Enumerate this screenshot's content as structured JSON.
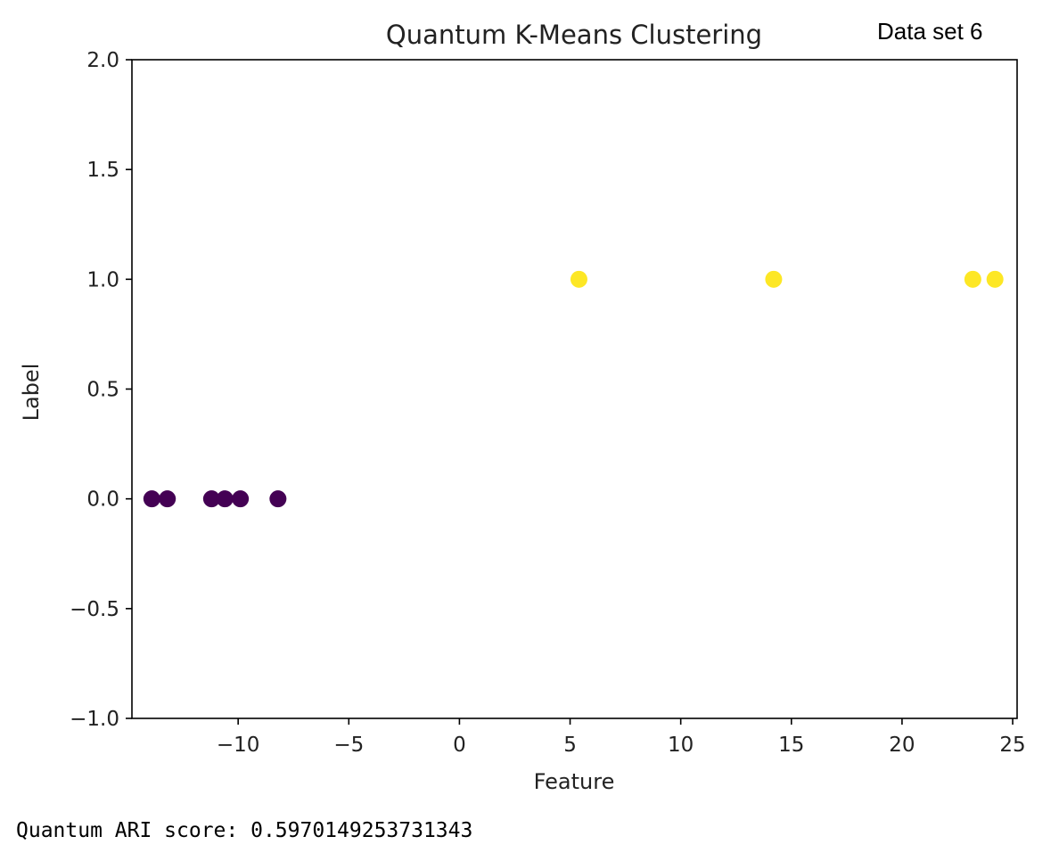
{
  "badge": "Data set 6",
  "output_line": "Quantum ARI score: 0.5970149253731343",
  "chart_data": {
    "type": "scatter",
    "title": "Quantum K-Means Clustering",
    "xlabel": "Feature",
    "ylabel": "Label",
    "xlim": [
      -14.8,
      25.2
    ],
    "ylim": [
      -1.0,
      2.0
    ],
    "xticks": [
      {
        "value": -10,
        "label": "−10"
      },
      {
        "value": -5,
        "label": "−5"
      },
      {
        "value": 0,
        "label": "0"
      },
      {
        "value": 5,
        "label": "5"
      },
      {
        "value": 10,
        "label": "10"
      },
      {
        "value": 15,
        "label": "15"
      },
      {
        "value": 20,
        "label": "20"
      },
      {
        "value": 25,
        "label": "25"
      }
    ],
    "yticks": [
      {
        "value": -1.0,
        "label": "−1.0"
      },
      {
        "value": -0.5,
        "label": "−0.5"
      },
      {
        "value": 0.0,
        "label": "0.0"
      },
      {
        "value": 0.5,
        "label": "0.5"
      },
      {
        "value": 1.0,
        "label": "1.0"
      },
      {
        "value": 1.5,
        "label": "1.5"
      },
      {
        "value": 2.0,
        "label": "2.0"
      }
    ],
    "grid": false,
    "series": [
      {
        "color": "#440154",
        "points": [
          {
            "x": -13.9,
            "y": 0
          },
          {
            "x": -13.2,
            "y": 0
          },
          {
            "x": -11.2,
            "y": 0
          },
          {
            "x": -10.6,
            "y": 0
          },
          {
            "x": -9.9,
            "y": 0
          },
          {
            "x": -8.2,
            "y": 0
          }
        ]
      },
      {
        "color": "#fde725",
        "points": [
          {
            "x": 5.4,
            "y": 1
          },
          {
            "x": 14.2,
            "y": 1
          },
          {
            "x": 23.2,
            "y": 1
          },
          {
            "x": 24.2,
            "y": 1
          }
        ]
      }
    ]
  }
}
